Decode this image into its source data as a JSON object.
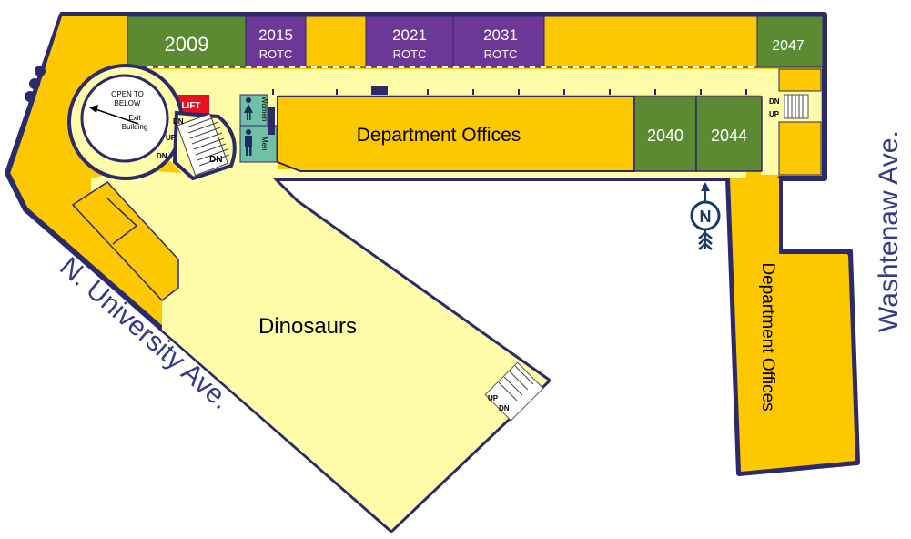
{
  "colors": {
    "corridor": "#fffcaa",
    "office": "#fdc800",
    "classroom": "#5b8a33",
    "rotc": "#6c3796",
    "restroom": "#6fc0a4",
    "lift": "#e8101f",
    "wall": "#2b2a6b",
    "street_text": "#3a3a8a"
  },
  "rooms": {
    "r2009": "2009",
    "r2015": "2015",
    "r2015_sub": "ROTC",
    "r2021": "2021",
    "r2021_sub": "ROTC",
    "r2031": "2031",
    "r2031_sub": "ROTC",
    "r2047": "2047",
    "r2040": "2040",
    "r2044": "2044"
  },
  "areas": {
    "department_offices_main": "Department Offices",
    "department_offices_annex": "Department Offices",
    "dinosaurs": "Dinosaurs",
    "lift": "LIFT",
    "women": "Women",
    "men": "Men"
  },
  "rotunda": {
    "open_line1": "OPEN TO",
    "open_line2": "BELOW",
    "exit_line1": "Exit",
    "exit_line2": "Building"
  },
  "stairs": {
    "up": "UP",
    "dn": "DN"
  },
  "streets": {
    "university": "N. University Ave.",
    "washtenaw": "Washtenaw Ave."
  },
  "compass": {
    "letter": "N"
  },
  "icons": {
    "women": "woman-icon",
    "men": "man-icon",
    "compass": "north-arrow-icon"
  }
}
